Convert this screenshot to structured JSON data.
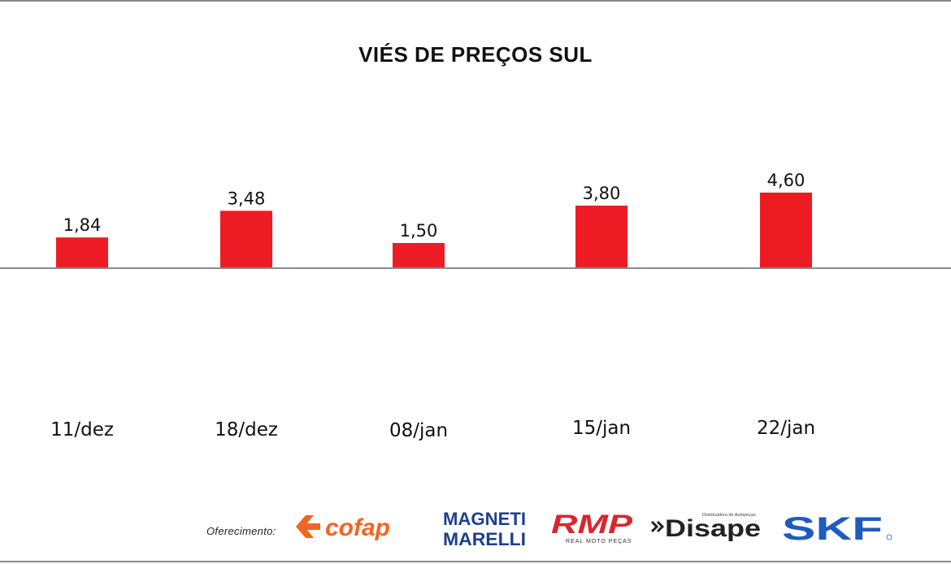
{
  "chart_data": {
    "type": "bar",
    "title": "VIÉS DE PREÇOS SUL",
    "categories": [
      "11/dez",
      "18/dez",
      "08/jan",
      "15/jan",
      "22/jan"
    ],
    "values": [
      1.84,
      3.48,
      1.5,
      3.8,
      4.6
    ],
    "value_labels": [
      "1,84",
      "3,48",
      "1,50",
      "3,80",
      "4,60"
    ],
    "ylim": [
      0,
      4.6
    ],
    "bar_color": "#ed1c24",
    "axis_color": "#8a8a8a",
    "grid": false
  },
  "footer": {
    "sponsor_label": "Oferecimento:",
    "logos": {
      "cofap": "cofap",
      "magneti_top": "MAGNETI",
      "magneti_bottom": "MARELLI",
      "rmp": "RMP",
      "rmp_sub": "REAL MOTO PEÇAS",
      "disape": "Disape",
      "disape_sub": "Distribuidora de Autopeças",
      "skf": "SKF"
    },
    "colors": {
      "cofap": "#f26522",
      "magneti": "#1d3f8c",
      "rmp": "#d7282f",
      "disape": "#222222",
      "skf": "#1e5bbf"
    }
  }
}
